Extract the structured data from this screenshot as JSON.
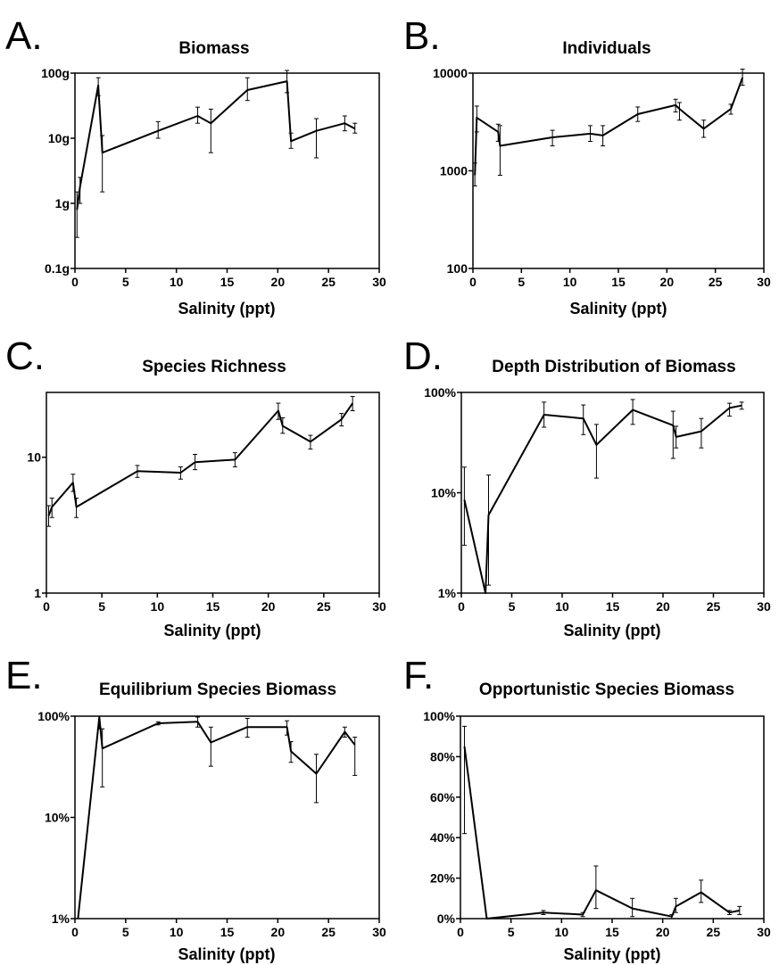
{
  "chart_data": [
    {
      "id": "A",
      "letter": "A.",
      "type": "line",
      "title": "Biomass",
      "xlabel": "Salinity (ppt)",
      "ylabel": "",
      "yscale": "log",
      "xlim": [
        0,
        30
      ],
      "ylim": [
        0.1,
        100
      ],
      "xticks": [
        0,
        5,
        10,
        15,
        20,
        25,
        30
      ],
      "yticks": [
        0.1,
        1,
        10,
        100
      ],
      "ytick_labels": [
        "0.1g",
        "1g",
        "10g",
        "100g"
      ],
      "grid": false,
      "series": [
        {
          "x": [
            0.2,
            0.5,
            2.3,
            2.7,
            8.2,
            12.1,
            13.4,
            17.0,
            20.9,
            21.3,
            23.8,
            26.6,
            27.6
          ],
          "y": [
            0.8,
            1.8,
            65,
            6,
            13,
            22,
            17,
            55,
            75,
            9,
            13,
            17,
            14
          ],
          "err_low": [
            0.3,
            1.0,
            45,
            1.5,
            10,
            17,
            6,
            38,
            50,
            7,
            5,
            13,
            12
          ],
          "err_high": [
            1.5,
            2.5,
            85,
            11,
            18,
            30,
            28,
            85,
            110,
            12,
            20,
            22,
            17
          ]
        }
      ]
    },
    {
      "id": "B",
      "letter": "B.",
      "type": "line",
      "title": "Individuals",
      "xlabel": "Salinity (ppt)",
      "ylabel": "",
      "yscale": "log",
      "xlim": [
        0,
        30
      ],
      "ylim": [
        100,
        10000
      ],
      "xticks": [
        0,
        5,
        10,
        15,
        20,
        25,
        30
      ],
      "yticks": [
        100,
        1000,
        10000
      ],
      "ytick_labels": [
        "100",
        "1000",
        "10000"
      ],
      "grid": false,
      "series": [
        {
          "x": [
            0.2,
            0.4,
            2.6,
            2.8,
            8.2,
            12.1,
            13.4,
            17.0,
            20.9,
            21.3,
            23.8,
            26.6,
            27.8
          ],
          "y": [
            900,
            3500,
            2500,
            1800,
            2200,
            2400,
            2300,
            3800,
            4700,
            4300,
            2700,
            4300,
            9000
          ],
          "err_low": [
            700,
            2500,
            2000,
            900,
            1800,
            2000,
            1800,
            3200,
            4000,
            3300,
            2200,
            3800,
            7500
          ],
          "err_high": [
            1200,
            4600,
            3000,
            2900,
            2600,
            2900,
            2900,
            4500,
            5400,
            5000,
            3300,
            4800,
            11000
          ]
        }
      ]
    },
    {
      "id": "C",
      "letter": "C.",
      "type": "line",
      "title": "Species Richness",
      "xlabel": "Salinity (ppt)",
      "ylabel": "",
      "yscale": "log",
      "xlim": [
        0,
        30
      ],
      "ylim": [
        1,
        30
      ],
      "xticks": [
        0,
        5,
        10,
        15,
        20,
        25,
        30
      ],
      "yticks": [
        1,
        10
      ],
      "ytick_labels": [
        "1",
        "10"
      ],
      "grid": false,
      "series": [
        {
          "x": [
            0.2,
            0.5,
            2.4,
            2.7,
            8.2,
            12.1,
            13.4,
            17.0,
            20.9,
            21.3,
            23.8,
            26.6,
            27.6
          ],
          "y": [
            3.7,
            4.3,
            6.5,
            4.3,
            7.9,
            7.7,
            9.2,
            9.6,
            22,
            17,
            13,
            19,
            25
          ],
          "err_low": [
            3.1,
            3.6,
            5.6,
            3.6,
            7.1,
            6.9,
            8.1,
            8.5,
            19,
            15,
            11.5,
            17,
            22
          ],
          "err_high": [
            4.4,
            5.0,
            7.5,
            5.0,
            8.7,
            8.5,
            10.5,
            10.8,
            25,
            19.5,
            14.5,
            21,
            28
          ]
        }
      ]
    },
    {
      "id": "D",
      "letter": "D.",
      "type": "line",
      "title": "Depth Distribution of Biomass",
      "xlabel": "Salinity (ppt)",
      "ylabel": "",
      "yscale": "log",
      "xlim": [
        0,
        30
      ],
      "ylim": [
        1,
        100
      ],
      "xticks": [
        0,
        5,
        10,
        15,
        20,
        25,
        30
      ],
      "yticks": [
        1,
        10,
        100
      ],
      "ytick_labels": [
        "1%",
        "10%",
        "100%"
      ],
      "grid": false,
      "series": [
        {
          "x": [
            0.3,
            2.4,
            2.7,
            8.2,
            12.1,
            13.4,
            17.0,
            21.0,
            21.3,
            23.8,
            26.6,
            27.8
          ],
          "y": [
            8.5,
            1.0,
            6.0,
            60,
            55,
            30,
            67,
            47,
            36,
            41,
            70,
            74
          ],
          "err_low": [
            3.0,
            1.0,
            1.2,
            45,
            38,
            14,
            48,
            22,
            28,
            28,
            58,
            68
          ],
          "err_high": [
            18,
            1.0,
            15,
            80,
            75,
            48,
            85,
            65,
            46,
            55,
            78,
            80
          ]
        }
      ]
    },
    {
      "id": "E",
      "letter": "E.",
      "type": "line",
      "title": "Equilibrium Species Biomass",
      "xlabel": "Salinity (ppt)",
      "ylabel": "",
      "yscale": "log",
      "xlim": [
        0,
        30
      ],
      "ylim": [
        1,
        100
      ],
      "xticks": [
        0,
        5,
        10,
        15,
        20,
        25,
        30
      ],
      "yticks": [
        1,
        10,
        100
      ],
      "ytick_labels": [
        "1%",
        "10%",
        "100%"
      ],
      "grid": false,
      "series": [
        {
          "x": [
            0.3,
            2.4,
            2.7,
            8.2,
            12.1,
            13.4,
            17.0,
            20.9,
            21.3,
            23.8,
            26.6,
            27.6
          ],
          "y": [
            1.0,
            98,
            48,
            85,
            88,
            55,
            78,
            78,
            45,
            27,
            70,
            52
          ],
          "err_low": [
            1.0,
            75,
            20,
            82,
            78,
            32,
            62,
            65,
            35,
            14,
            62,
            26
          ],
          "err_high": [
            1.0,
            100,
            75,
            88,
            98,
            78,
            95,
            90,
            56,
            42,
            78,
            62
          ]
        }
      ]
    },
    {
      "id": "F",
      "letter": "F.",
      "type": "line",
      "title": "Opportunistic Species Biomass",
      "xlabel": "Salinity (ppt)",
      "ylabel": "",
      "yscale": "linear",
      "xlim": [
        0,
        30
      ],
      "ylim": [
        0,
        100
      ],
      "xticks": [
        0,
        5,
        10,
        15,
        20,
        25,
        30
      ],
      "yticks": [
        0,
        20,
        40,
        60,
        80,
        100
      ],
      "ytick_labels": [
        "0%",
        "20%",
        "40%",
        "60%",
        "80%",
        "100%"
      ],
      "grid": false,
      "series": [
        {
          "x": [
            0.4,
            2.6,
            8.2,
            12.1,
            13.4,
            17.0,
            20.9,
            21.3,
            23.8,
            26.6,
            27.6
          ],
          "y": [
            85,
            0,
            3,
            2,
            14,
            5,
            1,
            6,
            13,
            3,
            4
          ],
          "err_low": [
            42,
            0,
            2,
            1,
            5,
            1,
            0,
            3,
            8,
            2,
            2
          ],
          "err_high": [
            95,
            0,
            4,
            3,
            26,
            10,
            2,
            10,
            19,
            4,
            6
          ]
        }
      ]
    }
  ]
}
